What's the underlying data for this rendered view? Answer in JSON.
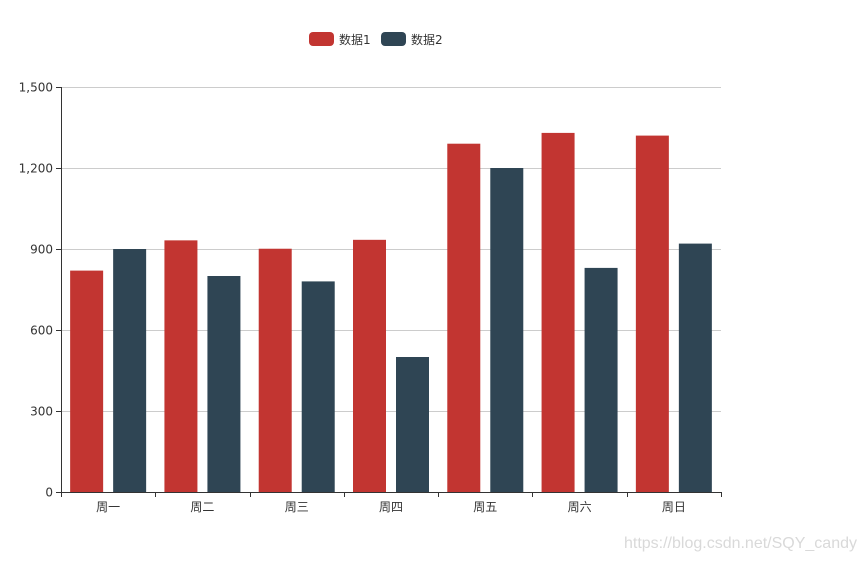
{
  "chart_data": {
    "type": "bar",
    "categories": [
      "周一",
      "周二",
      "周三",
      "周四",
      "周五",
      "周六",
      "周日"
    ],
    "series": [
      {
        "name": "数据1",
        "color": "#c23531",
        "values": [
          820,
          932,
          901,
          934,
          1290,
          1330,
          1320
        ]
      },
      {
        "name": "数据2",
        "color": "#2f4554",
        "values": [
          900,
          800,
          780,
          500,
          1200,
          830,
          920
        ]
      }
    ],
    "ylim": [
      0,
      1500
    ],
    "yticks": [
      0,
      300,
      600,
      900,
      1200,
      1500
    ],
    "ytick_labels": [
      "0",
      "300",
      "600",
      "900",
      "1,200",
      "1,500"
    ],
    "grid": true,
    "legend_position": "top-center",
    "title": "",
    "xlabel": "",
    "ylabel": ""
  },
  "watermark": "https://blog.csdn.net/SQY_candy"
}
